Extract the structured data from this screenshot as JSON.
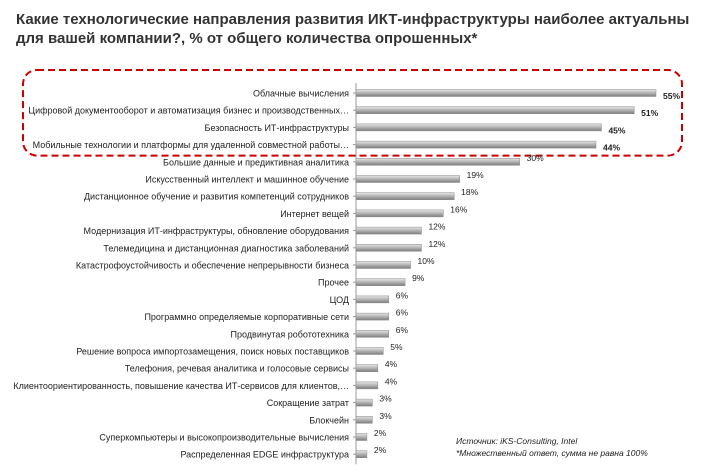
{
  "title": "Какие технологические направления развития ИКТ-инфраструктуры наиболее актуальны для вашей компании?, % от общего количества опрошенных*",
  "source_note": "Источник: iKS-Consulting, Intel",
  "footnote": "*Множественный ответ, сумма не равна 100%",
  "colors": {
    "highlight_border": "#cc0000",
    "bar": "#b8b8b8",
    "axis": "#999999"
  },
  "chart_data": {
    "type": "bar",
    "orientation": "horizontal",
    "categories": [
      "Облачные вычисления",
      "Цифровой документооборот и автоматизация бизнес и производственных…",
      "Безопасность ИТ-инфраструктуры",
      "Мобильные технологии и платформы для удаленной совместной работы…",
      "Большие данные и предиктивная аналитика",
      "Искусственный интеллект и машинное обучение",
      "Дистанционное обучение и развития компетенций сотрудников",
      "Интернет вещей",
      "Модернизация ИТ-инфраструктуры, обновление оборудования",
      "Телемедицина и дистанционная диагностика заболеваний",
      "Катастрофоустойчивость и обеспечение непрерывности бизнеса",
      "Прочее",
      "ЦОД",
      "Программно определяемые корпоративные сети",
      "Продвинутая робототехника",
      "Решение вопроса импортозамещения, поиск новых поставщиков",
      "Телефония, речевая аналитика и голосовые сервисы",
      "Клиентоориентированность, повышение качества ИТ-сервисов для клиентов,…",
      "Сокращение затрат",
      "Блокчейн",
      "Суперкомпьютеры и высокопроизводительные вычисления",
      "Распределенная EDGE инфраструктура"
    ],
    "values": [
      55,
      51,
      45,
      44,
      30,
      19,
      18,
      16,
      12,
      12,
      10,
      9,
      6,
      6,
      6,
      5,
      4,
      4,
      3,
      3,
      2,
      2
    ],
    "value_labels": [
      "55%",
      "51%",
      "45%",
      "44%",
      "30%",
      "19%",
      "18%",
      "16%",
      "12%",
      "12%",
      "10%",
      "9%",
      "6%",
      "6%",
      "6%",
      "5%",
      "4%",
      "4%",
      "3%",
      "3%",
      "2%",
      "2%"
    ],
    "bold_labels_top_n": 4,
    "highlighted_top_n": 4,
    "xlim": [
      0,
      55
    ]
  }
}
